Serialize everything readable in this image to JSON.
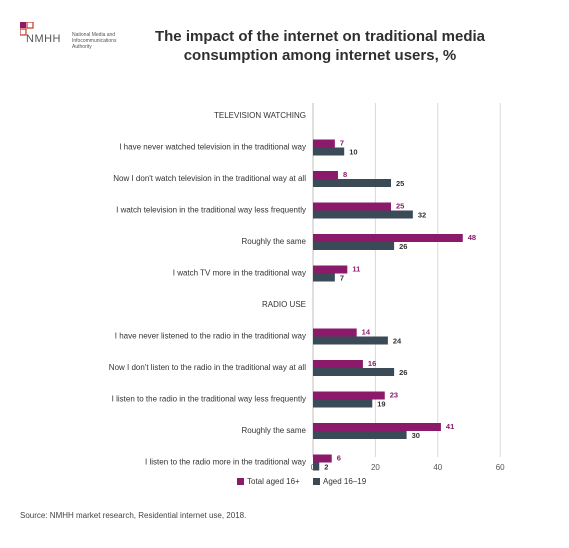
{
  "logo": {
    "word": "NMHH",
    "subtitle_lines": [
      "National Media and",
      "Infocommunications",
      "Authority"
    ]
  },
  "title_lines": [
    "The impact of the internet on traditional media",
    "consumption among internet users, %"
  ],
  "source": "Source: NMHH market research, Residential internet use, 2018.",
  "colors": {
    "total": "#8b1a6b",
    "aged": "#3b4a57",
    "grid": "#d9d9d9",
    "label_total": "#8b1a6b",
    "label_aged": "#333333"
  },
  "chart_data": {
    "type": "bar",
    "orientation": "horizontal",
    "title": "The impact of the internet on traditional media consumption among internet users, %",
    "xlim": [
      0,
      60
    ],
    "xticks": [
      0,
      20,
      40,
      60
    ],
    "grid": true,
    "legend_position": "bottom",
    "series": [
      {
        "name": "Total aged 16+",
        "key": "total"
      },
      {
        "name": "Aged 16–19",
        "key": "aged"
      }
    ],
    "rows": [
      {
        "label": "TELEVISION WATCHING",
        "header": true
      },
      {
        "label": "I have never watched television in the traditional way",
        "total": 7,
        "aged": 10
      },
      {
        "label": "Now I don't watch television in the traditional way at all",
        "total": 8,
        "aged": 25
      },
      {
        "label": "I watch television in the traditional way less frequently",
        "total": 25,
        "aged": 32
      },
      {
        "label": "Roughly the same",
        "total": 48,
        "aged": 26
      },
      {
        "label": "I watch TV more in the traditional way",
        "total": 11,
        "aged": 7
      },
      {
        "label": "RADIO USE",
        "header": true
      },
      {
        "label": "I have never listened to the radio in the traditional way",
        "total": 14,
        "aged": 24
      },
      {
        "label": "Now I don't listen to the radio in the traditional way at all",
        "total": 16,
        "aged": 26
      },
      {
        "label": "I listen to the radio in the traditional way less frequently",
        "total": 23,
        "aged": 19
      },
      {
        "label": "Roughly the same",
        "total": 41,
        "aged": 30
      },
      {
        "label": "I listen to the radio more in the traditional way",
        "total": 6,
        "aged": 2
      }
    ]
  }
}
